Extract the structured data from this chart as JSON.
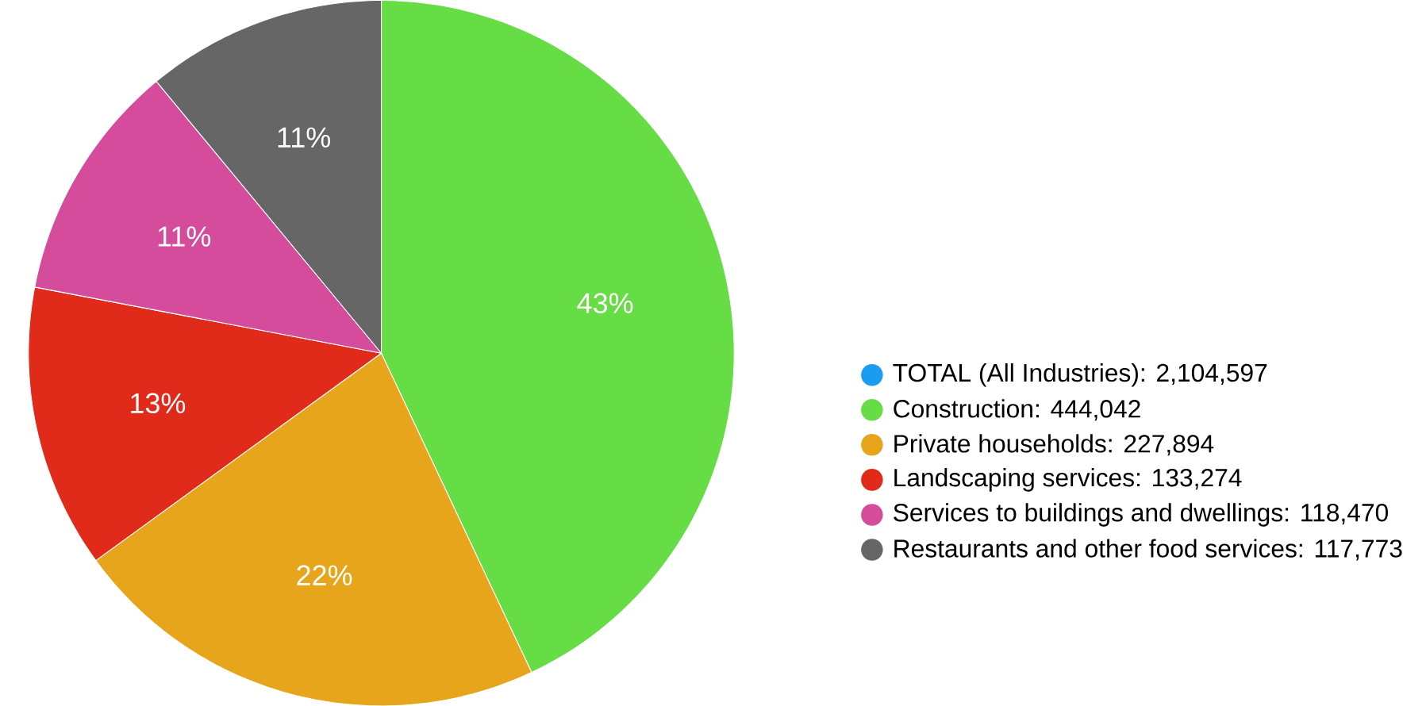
{
  "chart_data": {
    "type": "pie",
    "categories": [
      "TOTAL (All Industries): 2,104,597",
      "Construction: 444,042",
      "Private households: 227,894",
      "Landscaping services: 133,274",
      "Services to buildings and dwellings: 118,470",
      "Restaurants and other food services: 117,773"
    ],
    "values": [
      null,
      43,
      22,
      13,
      11,
      11
    ],
    "value_labels": [
      null,
      "43%",
      "22%",
      "13%",
      "11%",
      "11%"
    ],
    "colors": [
      "#1a9cf0",
      "#66dd44",
      "#e6a51b",
      "#e02a1a",
      "#d44c9b",
      "#666666"
    ],
    "legend": "right"
  }
}
